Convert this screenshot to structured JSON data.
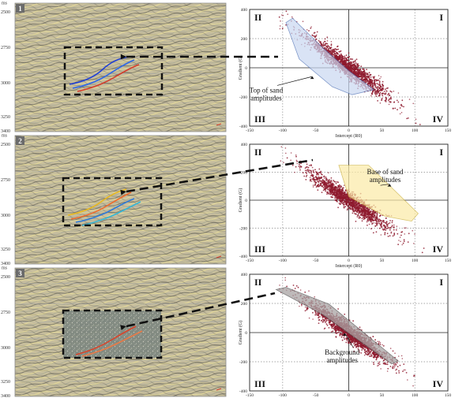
{
  "figure": {
    "colors": {
      "seismic_bg": "#c7bfa2",
      "seismic_grid": "#a9a9a9",
      "crossplot_points": "#8e1a2e",
      "top_sand_fill": "#c9d8f1",
      "top_sand_stroke": "#4c6fb5",
      "base_sand_fill": "#fbeaa6",
      "base_sand_stroke": "#c9ae38",
      "background_fill": "#a9a4a4",
      "background_stroke": "#555555",
      "box_stroke": "#111111"
    },
    "panels": [
      {
        "id": "1",
        "time_unit": "ms",
        "time_ticks": [
          "2500",
          "2750",
          "3000",
          "3250",
          "3400"
        ],
        "highlight_colors": [
          "#1f3fd6",
          "#2b66e8",
          "#d43b2a"
        ]
      },
      {
        "id": "2",
        "time_unit": "ms",
        "time_ticks": [
          "2500",
          "2750",
          "3000",
          "3250",
          "3400"
        ],
        "highlight_colors": [
          "#e8b81d",
          "#ef6a2a",
          "#2d7ad9",
          "#33b5d6"
        ]
      },
      {
        "id": "3",
        "time_unit": "ms",
        "time_ticks": [
          "2500",
          "2750",
          "3000",
          "3250",
          "3400"
        ],
        "highlight_colors": [
          "#d8452c",
          "#e87a47"
        ]
      }
    ]
  },
  "chart_data": [
    {
      "type": "scatter",
      "xlabel": "Intercept (R0)",
      "ylabel": "Gradient (G)",
      "xlim": [
        -150,
        150
      ],
      "ylim": [
        -400,
        400
      ],
      "x_ticks": [
        "-150",
        "-100",
        "-50",
        "0",
        "50",
        "100",
        "150"
      ],
      "y_ticks": [
        "400",
        "200",
        "0",
        "-200",
        "-400"
      ],
      "quadrants": {
        "tl": "II",
        "tr": "I",
        "bl": "III",
        "br": "IV"
      },
      "cloud": {
        "center_x": 0,
        "center_y": 0,
        "slope": -3.2,
        "x_spread": 30,
        "y_residual": 32
      },
      "polygon": {
        "vertices": [
          [
            -85,
            340
          ],
          [
            -40,
            140
          ],
          [
            0,
            -20
          ],
          [
            38,
            -150
          ],
          [
            5,
            -185
          ],
          [
            -25,
            -130
          ],
          [
            -75,
            60
          ],
          [
            -95,
            310
          ]
        ],
        "label": "Top of sand\namplitudes",
        "label_pos": [
          -125,
          -170
        ],
        "arrow_to": [
          -55,
          -60
        ]
      }
    },
    {
      "type": "scatter",
      "xlabel": "Intercept (R0)",
      "ylabel": "Gradient (G)",
      "xlim": [
        -150,
        150
      ],
      "ylim": [
        -400,
        400
      ],
      "x_ticks": [
        "-150",
        "-100",
        "-50",
        "0",
        "50",
        "100",
        "150"
      ],
      "y_ticks": [
        "400",
        "200",
        "0",
        "-200",
        "-400"
      ],
      "quadrants": {
        "tl": "II",
        "tr": "I",
        "bl": "III",
        "br": "IV"
      },
      "cloud": {
        "center_x": 0,
        "center_y": 0,
        "slope": -3.2,
        "x_spread": 30,
        "y_residual": 32
      },
      "polygon": {
        "vertices": [
          [
            -15,
            250
          ],
          [
            30,
            250
          ],
          [
            105,
            -95
          ],
          [
            95,
            -150
          ],
          [
            55,
            -115
          ],
          [
            0,
            25
          ]
        ],
        "label": "Base of sand\namplitudes",
        "label_pos": [
          55,
          185
        ],
        "arrow_to": [
          62,
          115
        ]
      }
    },
    {
      "type": "scatter",
      "xlabel": "",
      "ylabel": "Gradient (G)",
      "xlim": [
        -150,
        150
      ],
      "ylim": [
        -400,
        400
      ],
      "x_ticks": [
        "-150",
        "-100",
        "-50",
        "0",
        "50",
        "100",
        "150"
      ],
      "y_ticks": [
        "400",
        "200",
        "0",
        "-200",
        "-400"
      ],
      "quadrants": {
        "tl": "II",
        "tr": "I",
        "bl": "III",
        "br": "IV"
      },
      "cloud": {
        "center_x": 0,
        "center_y": 0,
        "slope": -3.2,
        "x_spread": 30,
        "y_residual": 32
      },
      "polygon": {
        "vertices": [
          [
            -95,
            310
          ],
          [
            -30,
            195
          ],
          [
            75,
            -195
          ],
          [
            65,
            -215
          ],
          [
            -40,
            125
          ],
          [
            -110,
            295
          ]
        ],
        "label": "Background\namplitudes",
        "label_pos": [
          -10,
          -150
        ],
        "arrow_to": [
          -6,
          -5
        ]
      }
    }
  ]
}
